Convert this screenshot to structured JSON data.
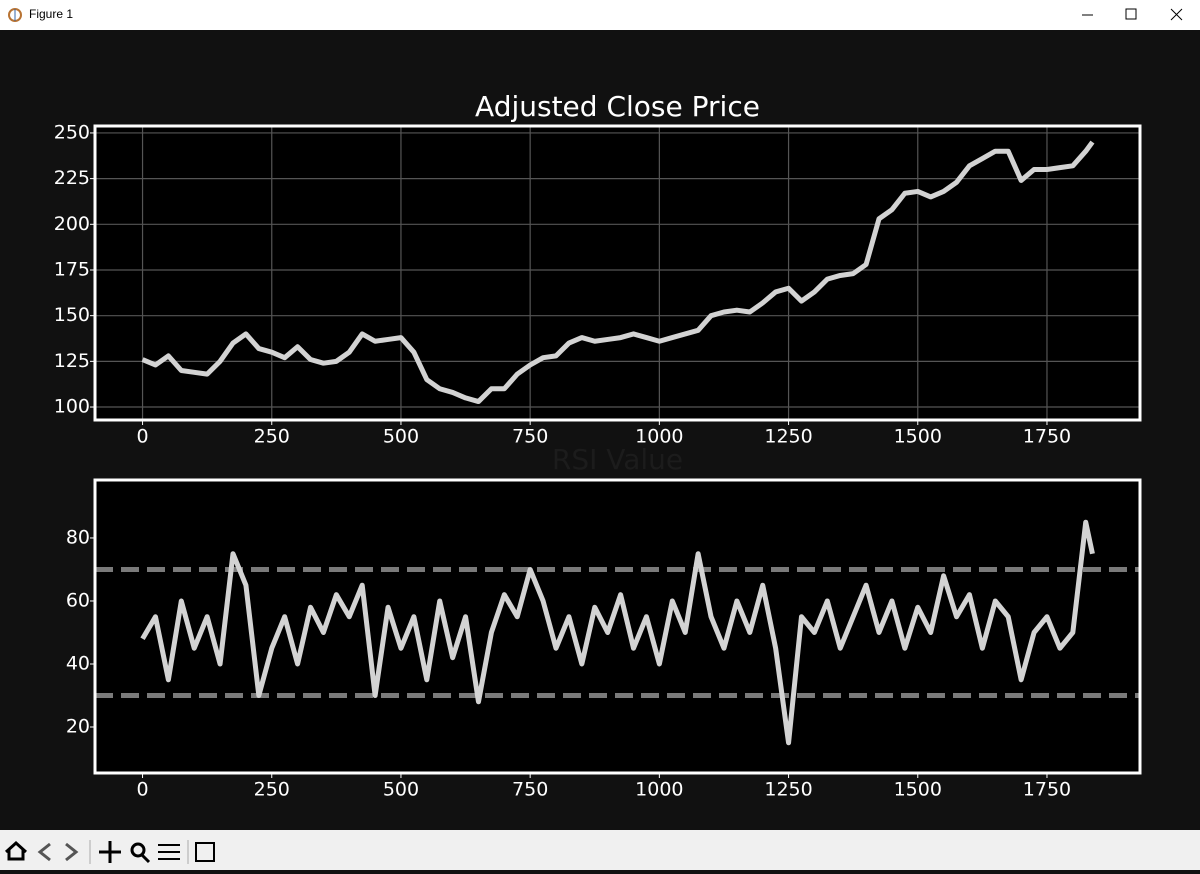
{
  "window": {
    "title": "Figure 1"
  },
  "chart_data": [
    {
      "type": "line",
      "title": "Adjusted Close Price",
      "color": "#d3d3d3",
      "grid": true,
      "x": [
        0,
        25,
        50,
        75,
        100,
        125,
        150,
        175,
        200,
        225,
        250,
        275,
        300,
        325,
        350,
        375,
        400,
        425,
        450,
        475,
        500,
        525,
        550,
        575,
        600,
        625,
        650,
        675,
        700,
        725,
        750,
        775,
        800,
        825,
        850,
        875,
        900,
        925,
        950,
        975,
        1000,
        1025,
        1050,
        1075,
        1100,
        1125,
        1150,
        1175,
        1200,
        1225,
        1250,
        1275,
        1300,
        1325,
        1350,
        1375,
        1400,
        1425,
        1450,
        1475,
        1500,
        1525,
        1550,
        1575,
        1600,
        1625,
        1650,
        1675,
        1700,
        1725,
        1750,
        1775,
        1800,
        1825,
        1838
      ],
      "values": [
        126,
        123,
        128,
        120,
        119,
        118,
        125,
        135,
        140,
        132,
        130,
        127,
        133,
        126,
        124,
        125,
        130,
        140,
        136,
        137,
        138,
        130,
        115,
        110,
        108,
        105,
        103,
        110,
        110,
        118,
        123,
        127,
        128,
        135,
        138,
        136,
        137,
        138,
        140,
        138,
        136,
        138,
        140,
        142,
        150,
        152,
        153,
        152,
        157,
        163,
        165,
        158,
        163,
        170,
        172,
        173,
        178,
        203,
        208,
        217,
        218,
        215,
        218,
        223,
        232,
        236,
        240,
        240,
        224,
        230,
        230,
        231,
        232,
        240,
        245
      ],
      "xlim": [
        -92,
        1930
      ],
      "ylim": [
        92.9,
        253.8
      ],
      "xticks": [
        0,
        250,
        500,
        750,
        1000,
        1250,
        1500,
        1750
      ],
      "yticks": [
        100,
        125,
        150,
        175,
        200,
        225,
        250
      ]
    },
    {
      "type": "line",
      "title": "RSI Value",
      "color": "#d3d3d3",
      "grid": false,
      "hlines": [
        70,
        30
      ],
      "hline_color": "#7a7a7a",
      "x": [
        0,
        25,
        50,
        75,
        100,
        125,
        150,
        175,
        200,
        225,
        250,
        275,
        300,
        325,
        350,
        375,
        400,
        425,
        450,
        475,
        500,
        525,
        550,
        575,
        600,
        625,
        650,
        675,
        700,
        725,
        750,
        775,
        800,
        825,
        850,
        875,
        900,
        925,
        950,
        975,
        1000,
        1025,
        1050,
        1075,
        1100,
        1125,
        1150,
        1175,
        1200,
        1225,
        1250,
        1275,
        1300,
        1325,
        1350,
        1375,
        1400,
        1425,
        1450,
        1475,
        1500,
        1525,
        1550,
        1575,
        1600,
        1625,
        1650,
        1675,
        1700,
        1725,
        1750,
        1775,
        1800,
        1825,
        1838
      ],
      "values": [
        48,
        55,
        35,
        60,
        45,
        55,
        40,
        75,
        65,
        30,
        45,
        55,
        40,
        58,
        50,
        62,
        55,
        65,
        30,
        58,
        45,
        55,
        35,
        60,
        42,
        55,
        28,
        50,
        62,
        55,
        70,
        60,
        45,
        55,
        40,
        58,
        50,
        62,
        45,
        55,
        40,
        60,
        50,
        75,
        55,
        45,
        60,
        50,
        65,
        45,
        15,
        55,
        50,
        60,
        45,
        55,
        65,
        50,
        60,
        45,
        58,
        50,
        68,
        55,
        62,
        45,
        60,
        55,
        35,
        50,
        55,
        45,
        50,
        85,
        75
      ],
      "xlim": [
        -92,
        1930
      ],
      "ylim": [
        5.4,
        98.4
      ],
      "xticks": [
        0,
        250,
        500,
        750,
        1000,
        1250,
        1500,
        1750
      ],
      "yticks": [
        20,
        40,
        60,
        80
      ]
    }
  ]
}
